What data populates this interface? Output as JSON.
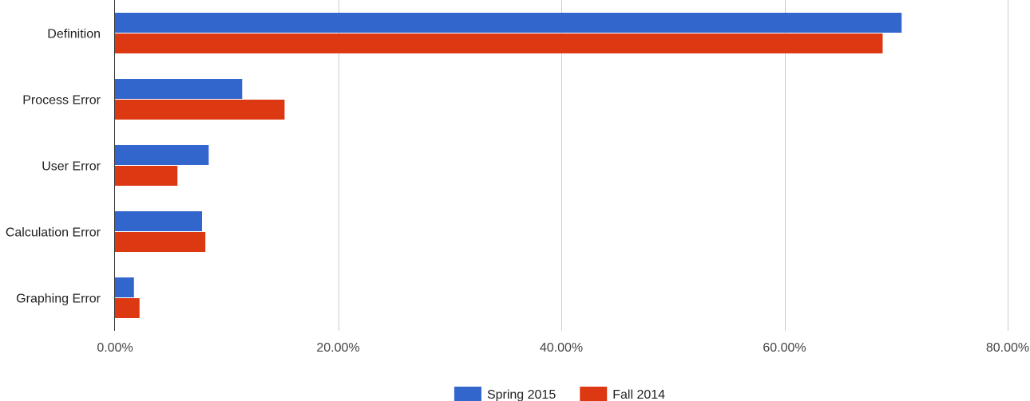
{
  "chart_data": {
    "type": "bar",
    "orientation": "horizontal",
    "title": "",
    "xlabel": "",
    "ylabel": "",
    "categories": [
      "Definition",
      "Process Error",
      "User Error",
      "Calculation Error",
      "Graphing Error"
    ],
    "series": [
      {
        "name": "Spring 2015",
        "color": "#3366cc",
        "values": [
          70.5,
          11.4,
          8.4,
          7.8,
          1.7
        ]
      },
      {
        "name": "Fall 2014",
        "color": "#dc3912",
        "values": [
          68.8,
          15.2,
          5.6,
          8.1,
          2.2
        ]
      }
    ],
    "xlim": [
      0,
      80
    ],
    "ticks": [
      0,
      20,
      40,
      60,
      80
    ],
    "tick_labels": [
      "0.00%",
      "20.00%",
      "40.00%",
      "60.00%",
      "80.00%"
    ],
    "grid": true,
    "legend_position": "bottom"
  }
}
